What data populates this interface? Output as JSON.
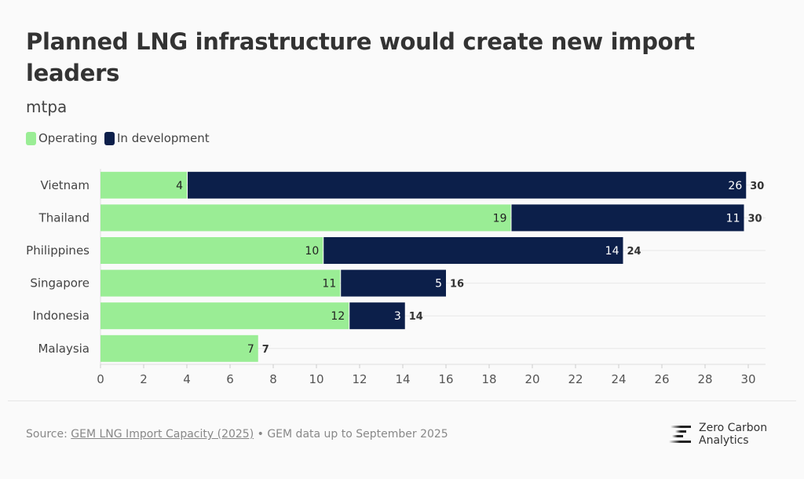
{
  "title": "Planned LNG infrastructure would create new import leaders",
  "subtitle": "mtpa",
  "legend": [
    {
      "label": "Operating",
      "color": "#9aed95"
    },
    {
      "label": "In development",
      "color": "#0c1f4a"
    }
  ],
  "chart_data": {
    "type": "bar",
    "orientation": "horizontal",
    "stacked": true,
    "title": "Planned LNG infrastructure would create new import leaders",
    "subtitle": "mtpa",
    "categories": [
      "Vietnam",
      "Thailand",
      "Philippines",
      "Singapore",
      "Indonesia",
      "Malaysia"
    ],
    "series": [
      {
        "name": "Operating",
        "color": "#9aed95",
        "values": [
          4.0,
          19.0,
          10.3,
          11.1,
          11.5,
          7.3
        ]
      },
      {
        "name": "In development",
        "color": "#0c1f4a",
        "values": [
          25.9,
          10.8,
          13.9,
          4.9,
          2.6,
          0
        ]
      }
    ],
    "totals_labels": [
      "30",
      "30",
      "24",
      "16",
      "14",
      "7"
    ],
    "xlim": [
      0,
      30
    ],
    "xticks": [
      0,
      2,
      4,
      6,
      8,
      10,
      12,
      14,
      16,
      18,
      20,
      22,
      24,
      26,
      28,
      30
    ],
    "grid": true,
    "legend_position": "top-left"
  },
  "footer": {
    "source_prefix": "Source: ",
    "source_link": "GEM LNG Import Capacity (2025)",
    "source_suffix": " • GEM data up to September 2025",
    "logo_line1": "Zero Carbon",
    "logo_line2": "Analytics"
  }
}
